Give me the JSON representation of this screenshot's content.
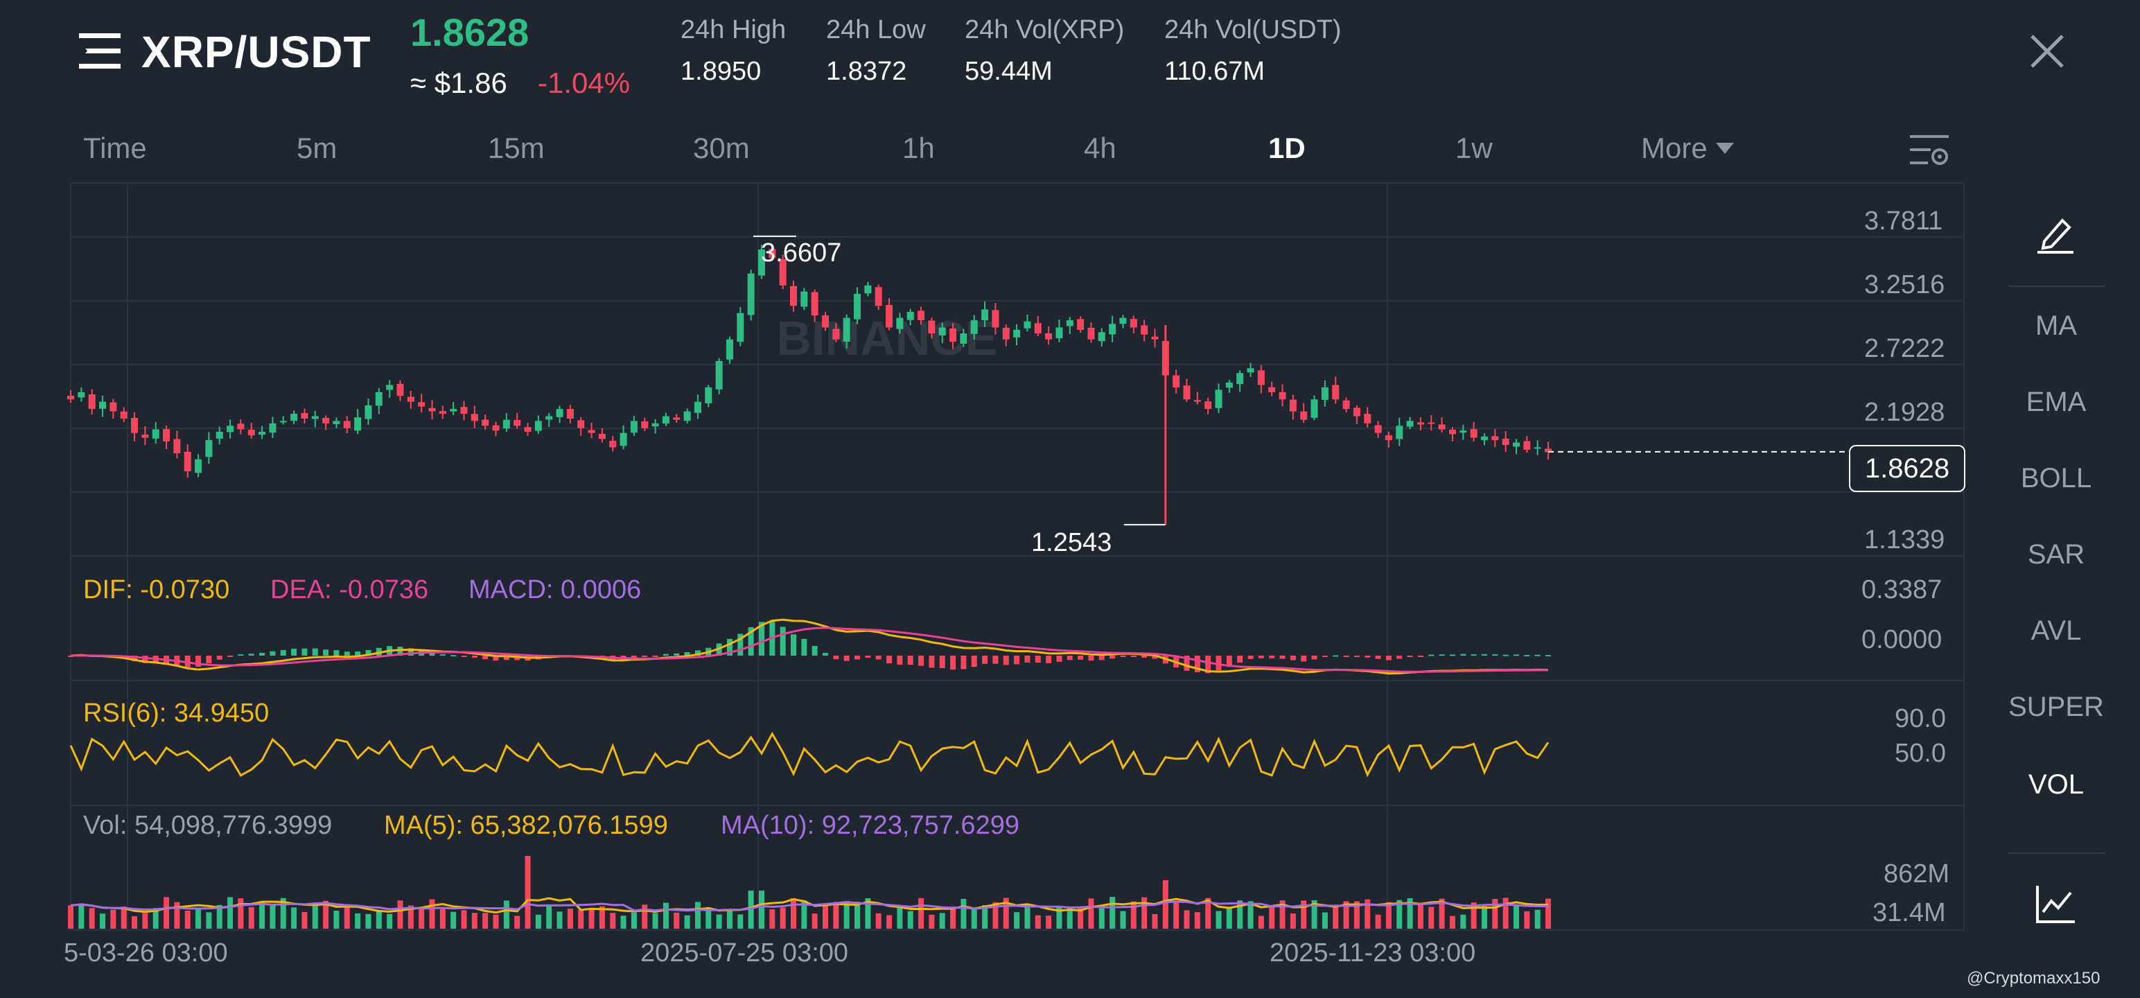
{
  "header": {
    "pair": "XRP/USDT",
    "last_price": "1.8628",
    "usd_price": "≈ $1.86",
    "change": "-1.04%",
    "stats": [
      {
        "label": "24h High",
        "value": "1.8950"
      },
      {
        "label": "24h Low",
        "value": "1.8372"
      },
      {
        "label": "24h Vol(XRP)",
        "value": "59.44M"
      },
      {
        "label": "24h Vol(USDT)",
        "value": "110.67M"
      }
    ]
  },
  "tabs": [
    "Time",
    "5m",
    "15m",
    "30m",
    "1h",
    "4h",
    "1D",
    "1w",
    "More"
  ],
  "active_tab": "1D",
  "right_panel": [
    "MA",
    "EMA",
    "BOLL",
    "SAR",
    "AVL",
    "SUPER",
    "VOL"
  ],
  "active_indicator": "VOL",
  "main_chart": {
    "price_ticks": [
      "3.7811",
      "3.2516",
      "2.7222",
      "2.1928",
      "1.1339"
    ],
    "high_label": "3.6607",
    "low_label": "1.2543",
    "current_price_tag": "1.8628",
    "watermark": "BINANCE"
  },
  "macd": {
    "dif": "DIF: -0.0730",
    "dea": "DEA: -0.0736",
    "macd": "MACD: 0.0006",
    "ticks": [
      "0.3387",
      "0.0000"
    ]
  },
  "rsi": {
    "label": "RSI(6): 34.9450",
    "ticks": [
      "90.0",
      "50.0"
    ]
  },
  "volume": {
    "vol": "Vol: 54,098,776.3999",
    "ma5": "MA(5): 65,382,076.1599",
    "ma10": "MA(10): 92,723,757.6299",
    "ticks": [
      "862M",
      "31.4M"
    ]
  },
  "x_axis": [
    "5-03-26 03:00",
    "2025-07-25 03:00",
    "2025-11-23 03:00"
  ],
  "credit": "@Cryptomaxx150",
  "colors": {
    "up": "#2ebd85",
    "down": "#f6465d",
    "macd_dif": "#f0b90b",
    "macd_dea": "#e84393",
    "macd_val": "#a46ee0",
    "rsi": "#f0b90b",
    "ma5": "#f0b90b",
    "ma10": "#a46ee0"
  },
  "chart_data": {
    "type": "candlestick",
    "interval": "1D",
    "y_ticks": [
      3.7811,
      3.2516,
      2.7222,
      2.1928,
      1.1339
    ],
    "ylim": [
      1.1339,
      3.7811
    ],
    "annotations": {
      "high": 3.6607,
      "low": 1.2543,
      "last": 1.8628
    },
    "x_ticks": [
      "5-03-26 03:00",
      "2025-07-25 03:00",
      "2025-11-23 03:00"
    ],
    "close_path": [
      2.3,
      2.36,
      2.22,
      2.28,
      2.2,
      2.14,
      2.02,
      1.98,
      2.05,
      1.95,
      1.85,
      1.7,
      1.8,
      1.96,
      2.03,
      2.08,
      2.05,
      2.0,
      2.03,
      2.1,
      2.12,
      2.18,
      2.14,
      2.16,
      2.1,
      2.12,
      2.06,
      2.15,
      2.25,
      2.36,
      2.42,
      2.33,
      2.28,
      2.24,
      2.2,
      2.18,
      2.22,
      2.18,
      2.12,
      2.08,
      2.04,
      2.13,
      2.08,
      2.03,
      2.12,
      2.16,
      2.22,
      2.14,
      2.06,
      2.02,
      1.97,
      1.9,
      2.02,
      2.12,
      2.06,
      2.1,
      2.16,
      2.13,
      2.2,
      2.28,
      2.4,
      2.62,
      2.8,
      3.02,
      3.35,
      3.55,
      3.48,
      3.25,
      3.08,
      3.2,
      3.0,
      2.9,
      2.8,
      2.98,
      3.18,
      3.25,
      3.08,
      2.9,
      2.98,
      3.03,
      2.96,
      2.85,
      2.9,
      2.78,
      2.85,
      2.96,
      3.05,
      2.9,
      2.8,
      2.88,
      2.95,
      2.85,
      2.8,
      2.9,
      2.96,
      2.88,
      2.8,
      2.86,
      2.93,
      2.98,
      2.9,
      2.84,
      2.8,
      2.5,
      2.4,
      2.3,
      2.28,
      2.22,
      2.38,
      2.44,
      2.52,
      2.56,
      2.42,
      2.36,
      2.3,
      2.2,
      2.13,
      2.3,
      2.4,
      2.3,
      2.22,
      2.16,
      2.1,
      2.02,
      1.96,
      2.08,
      2.12,
      2.09,
      2.1,
      2.05,
      2.01,
      2.04,
      1.98,
      1.99,
      1.96,
      1.92,
      1.94,
      1.88,
      1.9,
      1.86
    ],
    "macd": {
      "dif_last": -0.073,
      "dea_last": -0.0736,
      "macd_last": 0.0006,
      "ticks": [
        0.3387,
        0.0
      ]
    },
    "rsi": {
      "period": 6,
      "last": 34.945,
      "ticks": [
        90.0,
        50.0
      ]
    },
    "volume": {
      "last": 54098776.3999,
      "ma5": 65382076.1599,
      "ma10": 92723757.6299,
      "ticks": [
        "862M",
        "31.4M"
      ]
    }
  }
}
